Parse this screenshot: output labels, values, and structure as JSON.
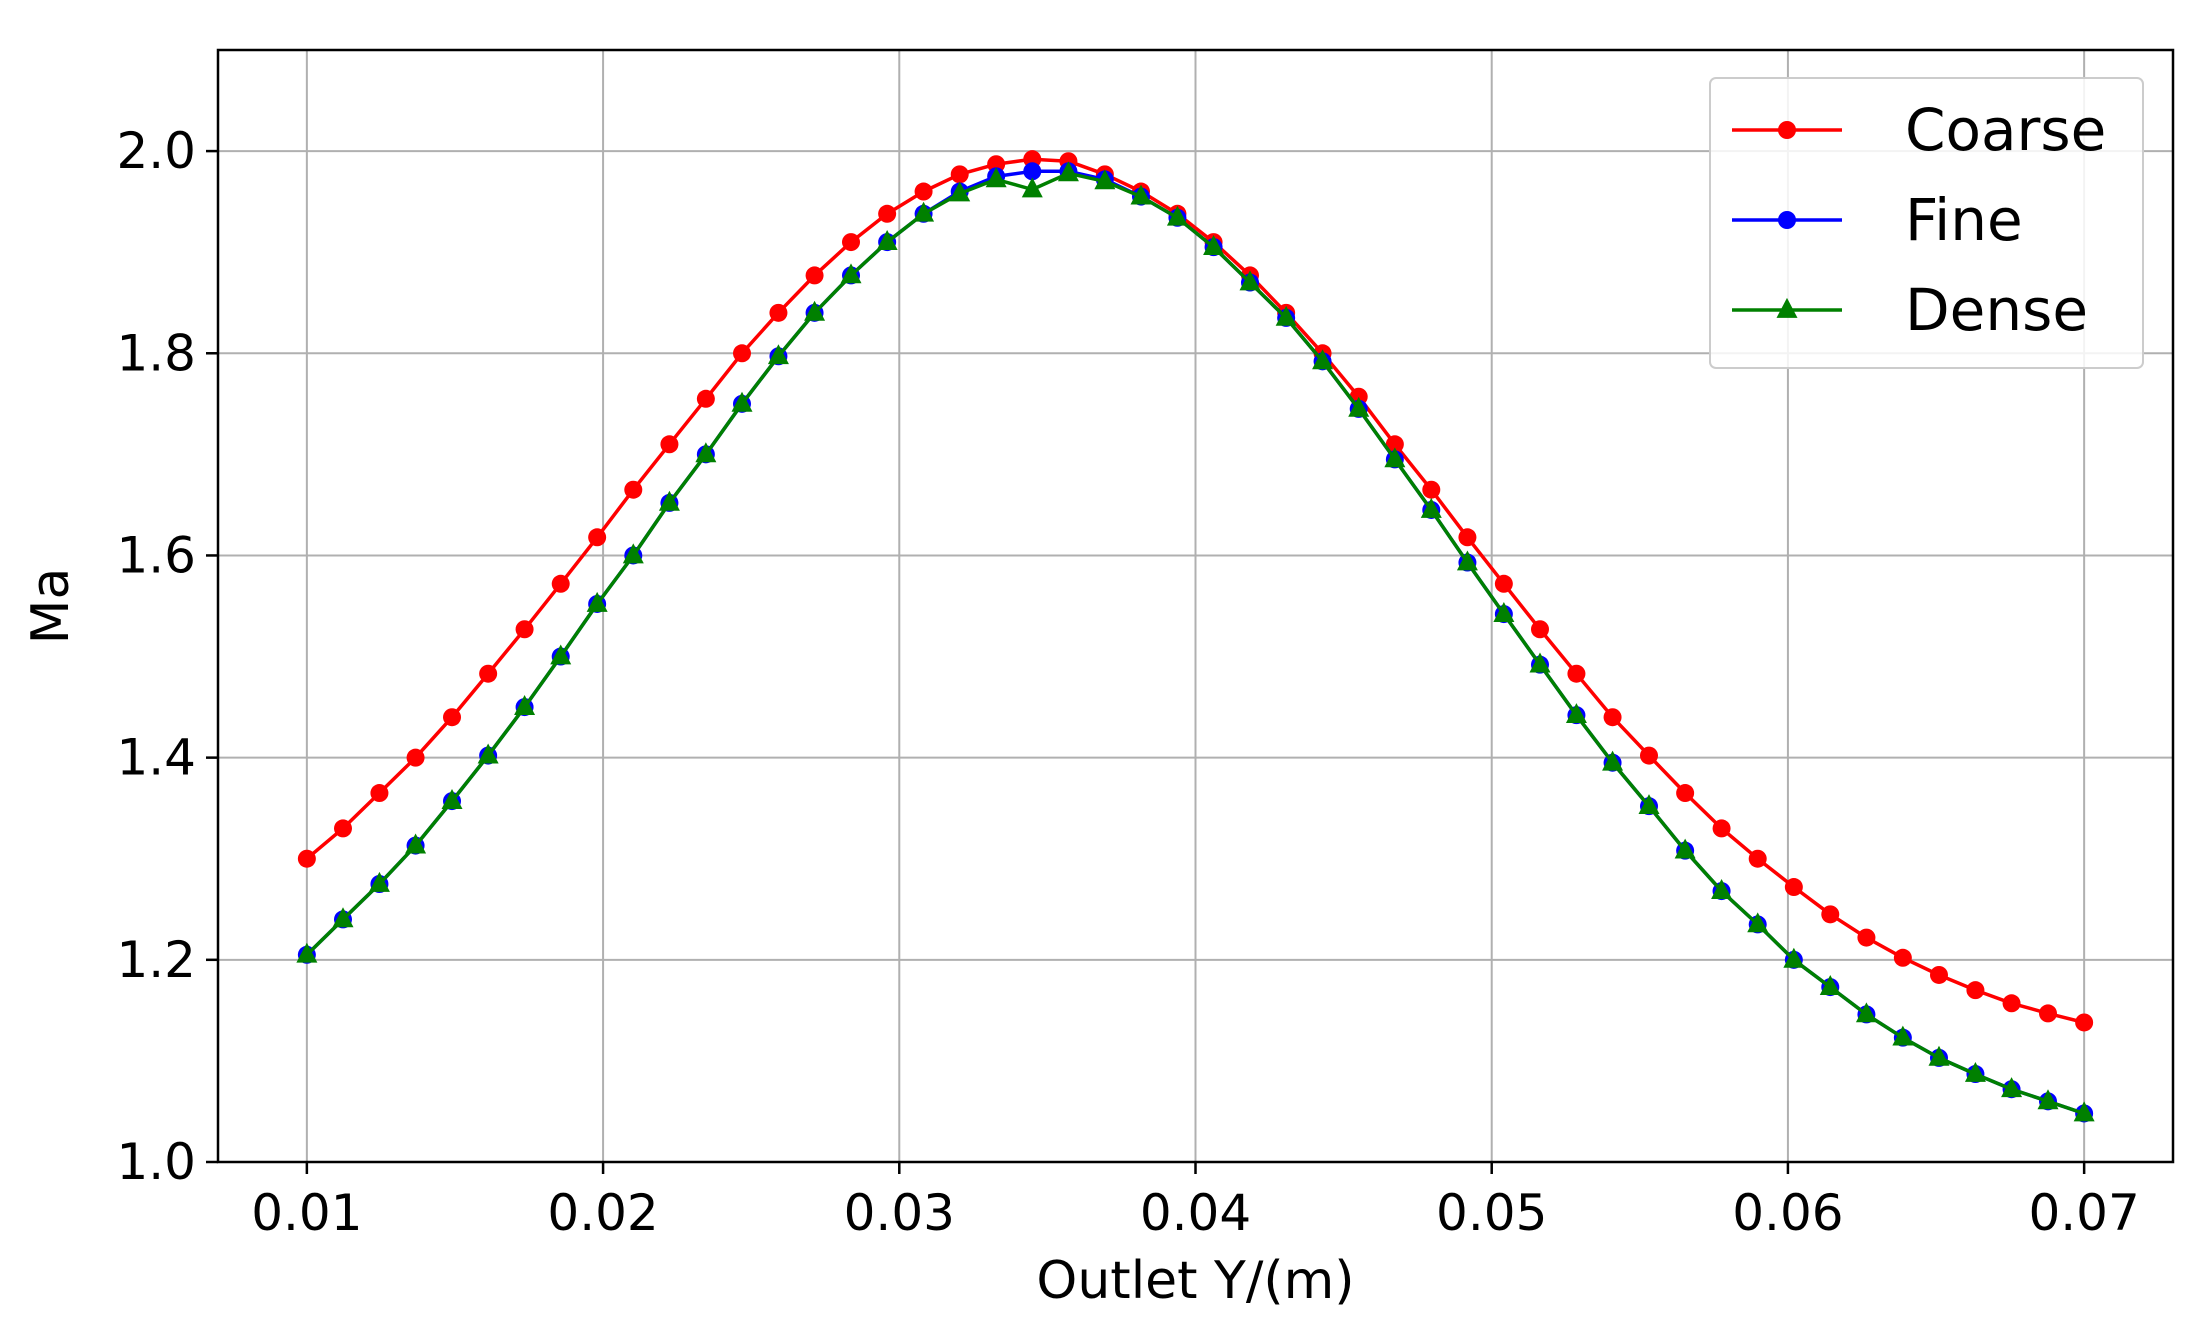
{
  "chart_data": {
    "type": "line",
    "title": "",
    "xlabel": "Outlet Y/(m)",
    "ylabel": "Ma",
    "xlim": [
      0.007,
      0.073
    ],
    "ylim": [
      1.0,
      2.1
    ],
    "xticks": [
      0.01,
      0.02,
      0.03,
      0.04,
      0.05,
      0.06,
      0.07
    ],
    "xtick_labels": [
      "0.01",
      "0.02",
      "0.03",
      "0.04",
      "0.05",
      "0.06",
      "0.07"
    ],
    "yticks": [
      1.0,
      1.2,
      1.4,
      1.6,
      1.8,
      2.0
    ],
    "ytick_labels": [
      "1.0",
      "1.2",
      "1.4",
      "1.6",
      "1.8",
      "2.0"
    ],
    "grid": true,
    "legend_position": "top-right",
    "x": [
      0.01,
      0.01122,
      0.01245,
      0.01367,
      0.0149,
      0.01612,
      0.01735,
      0.01857,
      0.0198,
      0.02102,
      0.02224,
      0.02347,
      0.02469,
      0.02592,
      0.02714,
      0.02837,
      0.02959,
      0.03082,
      0.03204,
      0.03327,
      0.03449,
      0.03571,
      0.03694,
      0.03816,
      0.03939,
      0.04061,
      0.04184,
      0.04306,
      0.04429,
      0.04551,
      0.04673,
      0.04796,
      0.04918,
      0.05041,
      0.05163,
      0.05286,
      0.05408,
      0.05531,
      0.05653,
      0.05776,
      0.05898,
      0.0602,
      0.06143,
      0.06265,
      0.06388,
      0.0651,
      0.06633,
      0.06755,
      0.06878,
      0.07
    ],
    "series": [
      {
        "name": "Coarse",
        "color": "#ff0000",
        "marker": "circle",
        "values": [
          1.3,
          1.33,
          1.365,
          1.4,
          1.44,
          1.483,
          1.527,
          1.572,
          1.618,
          1.665,
          1.71,
          1.755,
          1.8,
          1.84,
          1.877,
          1.91,
          1.938,
          1.96,
          1.977,
          1.987,
          1.992,
          1.99,
          1.977,
          1.96,
          1.938,
          1.91,
          1.877,
          1.84,
          1.8,
          1.757,
          1.71,
          1.665,
          1.618,
          1.572,
          1.527,
          1.483,
          1.44,
          1.402,
          1.365,
          1.33,
          1.3,
          1.272,
          1.245,
          1.222,
          1.202,
          1.185,
          1.17,
          1.157,
          1.147,
          1.138
        ]
      },
      {
        "name": "Fine",
        "color": "#0000ff",
        "marker": "circle",
        "values": [
          1.205,
          1.24,
          1.275,
          1.313,
          1.357,
          1.402,
          1.45,
          1.5,
          1.552,
          1.6,
          1.652,
          1.7,
          1.75,
          1.797,
          1.84,
          1.877,
          1.91,
          1.938,
          1.96,
          1.975,
          1.98,
          1.98,
          1.972,
          1.955,
          1.934,
          1.905,
          1.87,
          1.835,
          1.792,
          1.745,
          1.695,
          1.645,
          1.593,
          1.542,
          1.492,
          1.442,
          1.395,
          1.352,
          1.308,
          1.268,
          1.235,
          1.2,
          1.173,
          1.146,
          1.123,
          1.103,
          1.087,
          1.072,
          1.06,
          1.048
        ]
      },
      {
        "name": "Dense",
        "color": "#008000",
        "marker": "triangle",
        "values": [
          1.205,
          1.24,
          1.275,
          1.313,
          1.357,
          1.402,
          1.45,
          1.5,
          1.552,
          1.6,
          1.652,
          1.7,
          1.75,
          1.797,
          1.84,
          1.877,
          1.91,
          1.938,
          1.958,
          1.972,
          1.962,
          1.978,
          1.97,
          1.955,
          1.934,
          1.905,
          1.87,
          1.835,
          1.792,
          1.745,
          1.695,
          1.645,
          1.593,
          1.542,
          1.492,
          1.442,
          1.395,
          1.352,
          1.308,
          1.268,
          1.235,
          1.2,
          1.173,
          1.146,
          1.123,
          1.103,
          1.087,
          1.072,
          1.06,
          1.048
        ]
      }
    ]
  }
}
